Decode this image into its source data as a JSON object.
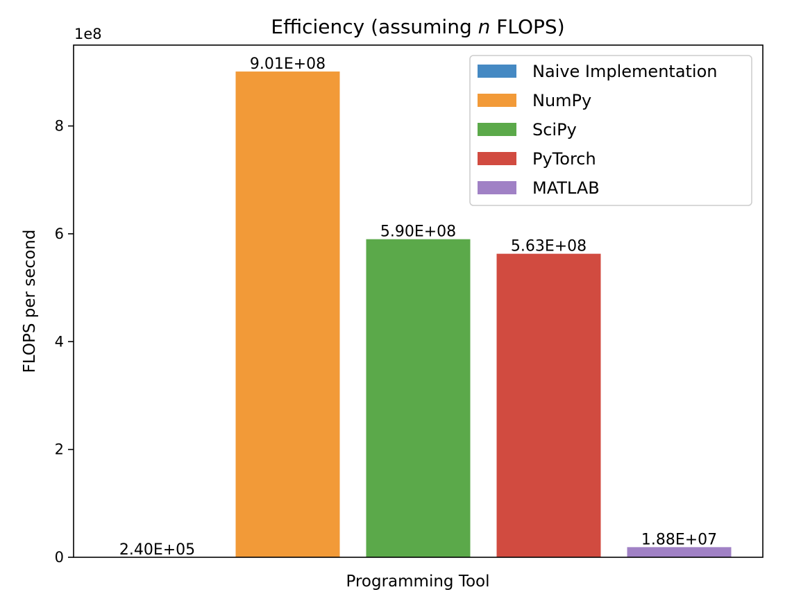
{
  "chart_data": {
    "type": "bar",
    "title_prefix": "Efficiency (assuming ",
    "title_var": "n",
    "title_suffix": " FLOPS)",
    "xlabel": "Programming Tool",
    "ylabel": "FLOPS per second",
    "y_offset_label": "1e8",
    "ylim": [
      0,
      950000000
    ],
    "y_ticks": [
      0,
      200000000,
      400000000,
      600000000,
      800000000
    ],
    "y_tick_labels": [
      "0",
      "2",
      "4",
      "6",
      "8"
    ],
    "legend_position": "top-right",
    "grid": false,
    "series": [
      {
        "name": "Naive Implementation",
        "value": 240000,
        "label": "2.40E+05",
        "color": "#4589c3"
      },
      {
        "name": "NumPy",
        "value": 901000000,
        "label": "9.01E+08",
        "color": "#f29a38"
      },
      {
        "name": "SciPy",
        "value": 590000000,
        "label": "5.90E+08",
        "color": "#5ba94a"
      },
      {
        "name": "PyTorch",
        "value": 563000000,
        "label": "5.63E+08",
        "color": "#d14b40"
      },
      {
        "name": "MATLAB",
        "value": 18800000,
        "label": "1.88E+07",
        "color": "#a081c5"
      }
    ]
  }
}
